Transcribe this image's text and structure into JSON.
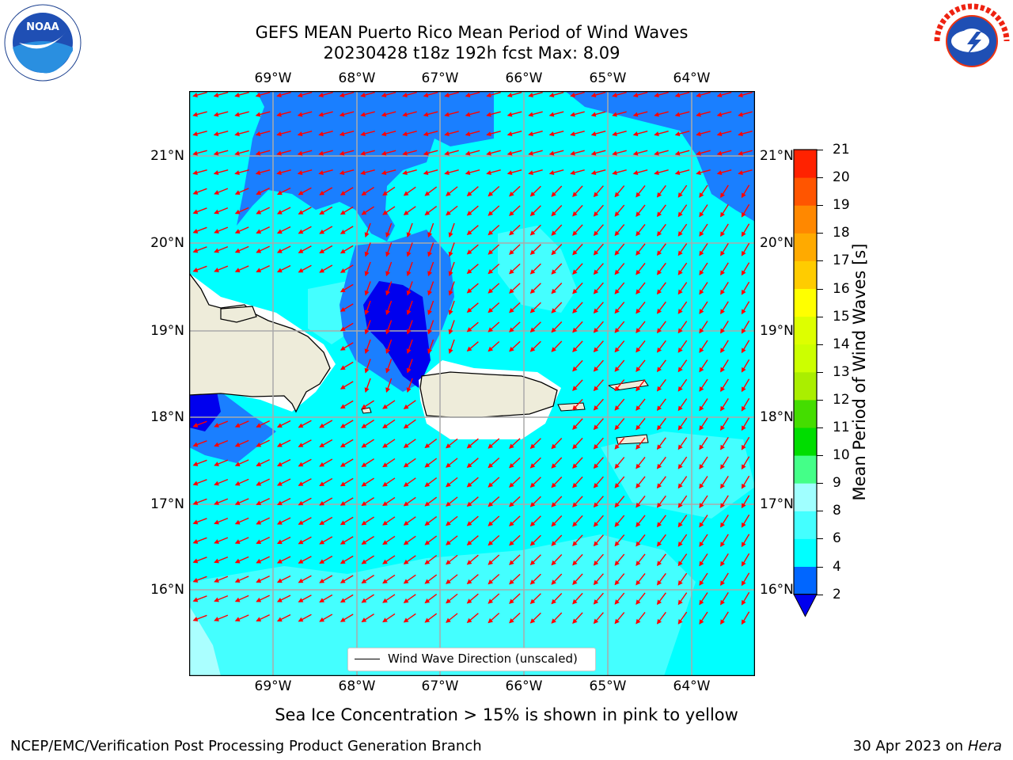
{
  "title": {
    "line1": "GEFS MEAN Puerto Rico Mean Period of Wind Waves",
    "line2": "20230428 t18z 192h fcst   Max: 8.09"
  },
  "logos": {
    "noara": "NOAA",
    "nws": "NATIONAL WEATHER SERVICE"
  },
  "axes": {
    "lon_labels": [
      "69°W",
      "68°W",
      "67°W",
      "66°W",
      "65°W",
      "64°W"
    ],
    "lat_labels": [
      "21°N",
      "20°N",
      "19°N",
      "18°N",
      "17°N",
      "16°N"
    ]
  },
  "legend": {
    "label": "Wind Wave Direction (unscaled)"
  },
  "colorbar": {
    "label": "Mean Period of Wind Waves [s]",
    "ticks": [
      "2",
      "4",
      "6",
      "8",
      "9",
      "10",
      "11",
      "12",
      "13",
      "14",
      "15",
      "16",
      "17",
      "18",
      "19",
      "20",
      "21"
    ],
    "colors": [
      "#0066ff",
      "#00ffff",
      "#44ffff",
      "#a0ffff",
      "#44ff88",
      "#00dd00",
      "#44dd00",
      "#aaee00",
      "#ccff00",
      "#ddff00",
      "#ffff00",
      "#ffcc00",
      "#ffaa00",
      "#ff8800",
      "#ff5500",
      "#ff2200"
    ],
    "under_color": "#0000ee"
  },
  "caption": "Sea Ice Concentration > 15% is shown in pink to yellow",
  "footer": {
    "left": "NCEP/EMC/Verification Post Processing Product Generation Branch",
    "date": "30 Apr 2023 on ",
    "machine": "Hera"
  },
  "map_colors": {
    "sea_base": "#00ffff",
    "long_period": "#44ffff",
    "short_period": "#1a7fff",
    "shortest_period": "#0000ee",
    "land": "#eeecda",
    "arrow": "#ff0000"
  }
}
